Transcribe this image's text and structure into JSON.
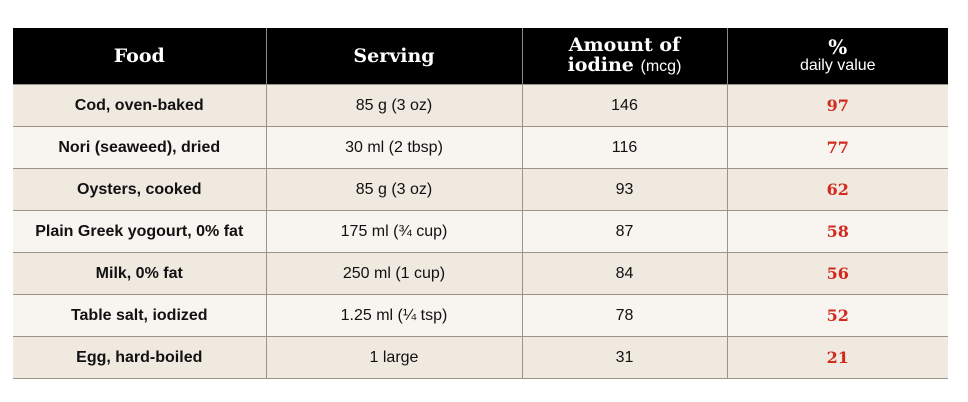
{
  "header": {
    "food": "Food",
    "serving": "Serving",
    "amount_line1": "Amount of",
    "amount_line2_bold": "iodine",
    "amount_line2_unit": "(mcg)",
    "dv_symbol": "%",
    "dv_label": "daily value"
  },
  "rows": [
    {
      "food": "Cod, oven-baked",
      "serving": "85 g (3 oz)",
      "iodine": "146",
      "dv": "97"
    },
    {
      "food": "Nori (seaweed), dried",
      "serving": "30 ml (2 tbsp)",
      "iodine": "116",
      "dv": "77"
    },
    {
      "food": "Oysters, cooked",
      "serving": "85 g (3 oz)",
      "iodine": "93",
      "dv": "62"
    },
    {
      "food": "Plain Greek yogourt, 0% fat",
      "serving": "175 ml (¾ cup)",
      "iodine": "87",
      "dv": "58"
    },
    {
      "food": "Milk, 0% fat",
      "serving": "250 ml (1 cup)",
      "iodine": "84",
      "dv": "56"
    },
    {
      "food": "Table salt, iodized",
      "serving": "1.25 ml (¼ tsp)",
      "iodine": "78",
      "dv": "52"
    },
    {
      "food": "Egg, hard-boiled",
      "serving": "1 large",
      "iodine": "31",
      "dv": "21"
    }
  ],
  "colors": {
    "header_bg": "#000000",
    "row_odd": "#efe9e0",
    "row_even": "#f8f5f0",
    "dv_text": "#d32a1e"
  }
}
